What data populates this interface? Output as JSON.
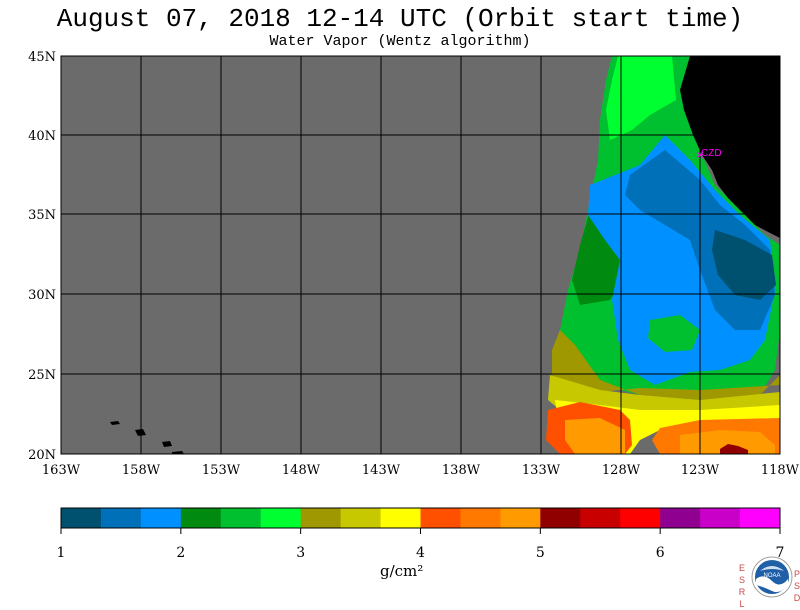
{
  "header": {
    "title": "August 07, 2018  12-14 UTC  (Orbit start time)",
    "subtitle": "Water Vapor (Wentz algorithm)"
  },
  "map": {
    "lat_labels": [
      "45N",
      "40N",
      "35N",
      "30N",
      "25N",
      "20N"
    ],
    "lon_labels": [
      "163W",
      "158W",
      "153W",
      "148W",
      "143W",
      "138W",
      "133W",
      "128W",
      "123W",
      "118W"
    ],
    "station_label": "CZD",
    "colors": {
      "no_data": "#6b6b6b",
      "land": "#000000",
      "grid": "#000000",
      "station": "#ff00ff"
    }
  },
  "colorbar": {
    "colors": [
      "#005070",
      "#0070b8",
      "#0090ff",
      "#008a10",
      "#00c030",
      "#00ff30",
      "#a09800",
      "#c8c800",
      "#ffff00",
      "#ff5000",
      "#ff7800",
      "#ff9a00",
      "#900000",
      "#c80000",
      "#ff0000",
      "#900090",
      "#c800c8",
      "#ff00ff"
    ],
    "tick_labels": [
      "1",
      "2",
      "3",
      "4",
      "5",
      "6",
      "7"
    ],
    "units": "g/cm²"
  },
  "branding": {
    "esrl": "ESRL",
    "psd": "PSD",
    "logo_text": "NOAA"
  }
}
